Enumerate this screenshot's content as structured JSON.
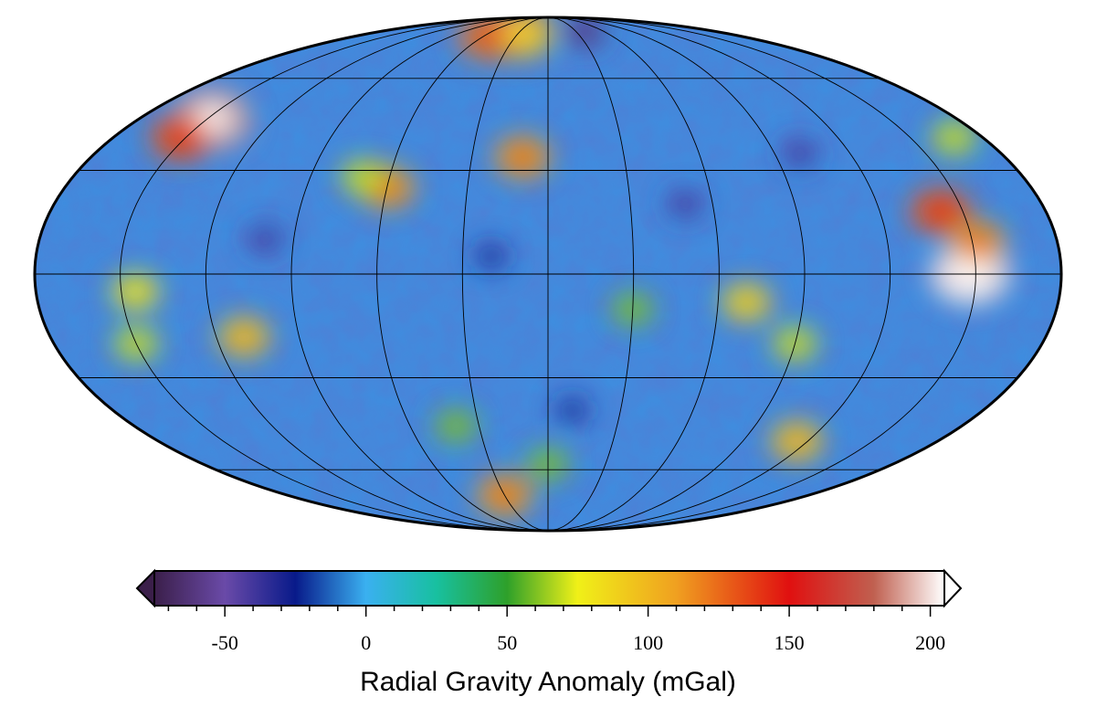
{
  "map": {
    "projection": "mollweide",
    "meridians_deg": [
      -180,
      -150,
      -120,
      -90,
      -60,
      -30,
      0,
      30,
      60,
      90,
      120,
      150,
      180
    ],
    "parallels_deg": [
      -60,
      -30,
      0,
      30,
      60
    ],
    "background_color": "#3d8fe0",
    "anomalies": [
      {
        "lon": -148,
        "lat": 46,
        "value": 190
      },
      {
        "lon": -152,
        "lat": 40,
        "value": 130
      },
      {
        "lon": -35,
        "lat": 80,
        "value": 180
      },
      {
        "lon": -55,
        "lat": 77,
        "value": 120
      },
      {
        "lon": -20,
        "lat": 78,
        "value": 90
      },
      {
        "lon": 40,
        "lat": 80,
        "value": -60
      },
      {
        "lon": 148,
        "lat": 0,
        "value": 200
      },
      {
        "lon": 142,
        "lat": 18,
        "value": 130
      },
      {
        "lon": 152,
        "lat": 9,
        "value": 110
      },
      {
        "lon": -145,
        "lat": -5,
        "value": 80
      },
      {
        "lon": -150,
        "lat": -20,
        "value": 70
      },
      {
        "lon": -110,
        "lat": -18,
        "value": 100
      },
      {
        "lon": -60,
        "lat": 25,
        "value": 110
      },
      {
        "lon": -70,
        "lat": 28,
        "value": 70
      },
      {
        "lon": -10,
        "lat": 34,
        "value": 110
      },
      {
        "lon": 30,
        "lat": -10,
        "value": 60
      },
      {
        "lon": 70,
        "lat": -8,
        "value": 90
      },
      {
        "lon": 90,
        "lat": -20,
        "value": 70
      },
      {
        "lon": -30,
        "lat": -70,
        "value": 110
      },
      {
        "lon": 115,
        "lat": -50,
        "value": 100
      },
      {
        "lon": 0,
        "lat": -58,
        "value": 60
      },
      {
        "lon": -40,
        "lat": -45,
        "value": 60
      },
      {
        "lon": 168,
        "lat": 40,
        "value": 70
      },
      {
        "lon": -100,
        "lat": 10,
        "value": -40
      },
      {
        "lon": 100,
        "lat": 35,
        "value": -40
      },
      {
        "lon": -20,
        "lat": 5,
        "value": -30
      },
      {
        "lon": 50,
        "lat": 20,
        "value": -40
      },
      {
        "lon": 10,
        "lat": -40,
        "value": -30
      }
    ]
  },
  "colorbar": {
    "min": -75,
    "max": 205,
    "ticks": [
      -50,
      0,
      50,
      100,
      150,
      200
    ],
    "tick_labels": [
      "-50",
      "0",
      "50",
      "100",
      "150",
      "200"
    ],
    "minor_step": 10,
    "stops": [
      {
        "value": -75,
        "color": "#3b1f4a"
      },
      {
        "value": -50,
        "color": "#6a4aa8"
      },
      {
        "value": -25,
        "color": "#081a8a"
      },
      {
        "value": 0,
        "color": "#3ab0f0"
      },
      {
        "value": 25,
        "color": "#18c0a0"
      },
      {
        "value": 50,
        "color": "#2ea02a"
      },
      {
        "value": 75,
        "color": "#f0f018"
      },
      {
        "value": 110,
        "color": "#f0a020"
      },
      {
        "value": 150,
        "color": "#e01010"
      },
      {
        "value": 180,
        "color": "#c06050"
      },
      {
        "value": 205,
        "color": "#ffffff"
      }
    ],
    "title": "Radial Gravity Anomaly (mGal)"
  }
}
